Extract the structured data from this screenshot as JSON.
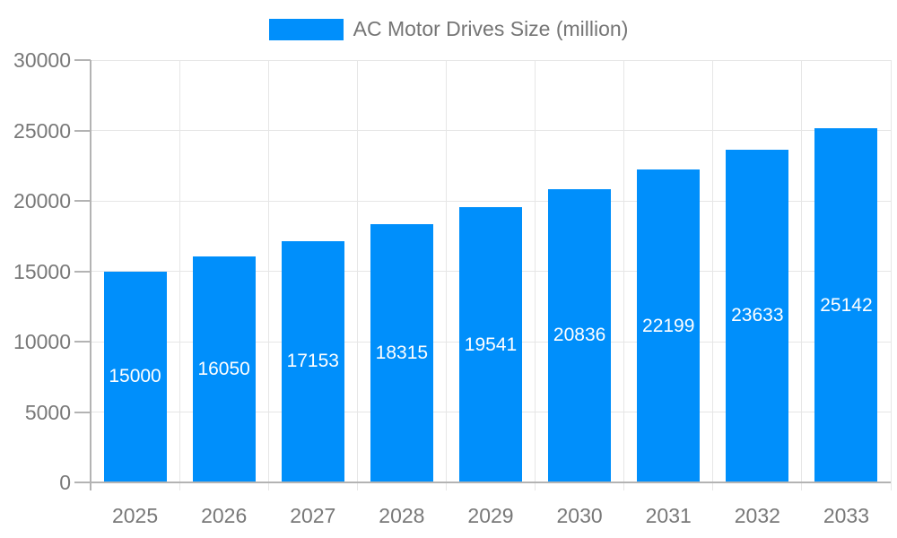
{
  "page": {
    "background": "#ffffff"
  },
  "legend": {
    "label": "AC Motor Drives Size (million)"
  },
  "chart_data": {
    "type": "bar",
    "title": "AC Motor Drives Size (million)",
    "categories": [
      "2025",
      "2026",
      "2027",
      "2028",
      "2029",
      "2030",
      "2031",
      "2032",
      "2033"
    ],
    "values": [
      15000,
      16050,
      17153,
      18315,
      19541,
      20836,
      22199,
      23633,
      25142
    ],
    "data_labels": [
      "15000",
      "16050",
      "17153",
      "18315",
      "19541",
      "20836",
      "22199",
      "23633",
      "25142"
    ],
    "xlabel": "",
    "ylabel": "",
    "ylim": [
      0,
      30000
    ],
    "ytick_step": 5000,
    "yticks": [
      "0",
      "5000",
      "10000",
      "15000",
      "20000",
      "25000",
      "30000"
    ],
    "grid": true,
    "legend_position": "top",
    "colors": {
      "bar": "#008FFB",
      "bar_label_text": "#ffffff",
      "gridline": "#e6e6e6",
      "axis_line": "#b3b3b3",
      "axis_text": "#787878",
      "legend_text": "#757575",
      "background": "#ffffff"
    }
  }
}
